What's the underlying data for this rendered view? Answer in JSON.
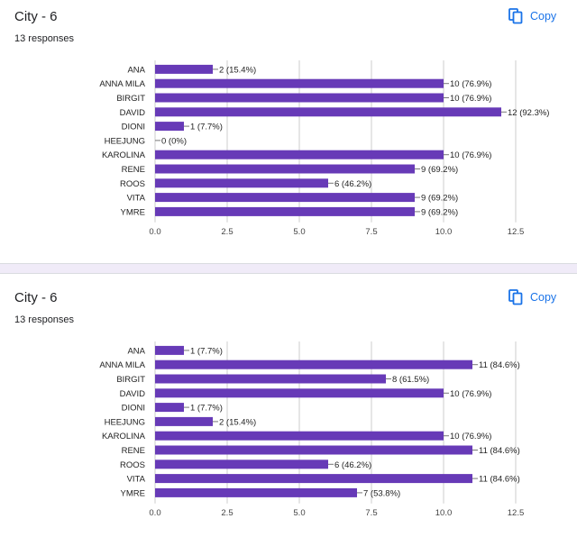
{
  "colors": {
    "bar": "#673ab7",
    "grid": "#cccccc",
    "link": "#1a73e8",
    "divider": "#f0ebf8"
  },
  "icons": {
    "copy": "copy-icon"
  },
  "copy_label": "Copy",
  "questions": [
    {
      "title": "City - 6",
      "responses": "13 responses"
    },
    {
      "title": "City - 6",
      "responses": "13 responses"
    }
  ],
  "chart_data": [
    {
      "type": "bar",
      "orientation": "horizontal",
      "categories": [
        "ANA",
        "ANNA MILA",
        "BIRGIT",
        "DAVID",
        "DIONI",
        "HEEJUNG",
        "KAROLINA",
        "RENE",
        "ROOS",
        "VITA",
        "YMRE"
      ],
      "values": [
        2,
        10,
        10,
        12,
        1,
        0,
        10,
        9,
        6,
        9,
        9
      ],
      "data_labels": [
        "2 (15.4%)",
        "10 (76.9%)",
        "10 (76.9%)",
        "12 (92.3%)",
        "1 (7.7%)",
        "0 (0%)",
        "10 (76.9%)",
        "9 (69.2%)",
        "6 (46.2%)",
        "9 (69.2%)",
        "9 (69.2%)"
      ],
      "xlim": [
        0,
        12.5
      ],
      "xticks": [
        "0.0",
        "2.5",
        "5.0",
        "7.5",
        "10.0",
        "12.5"
      ],
      "grid": true
    },
    {
      "type": "bar",
      "orientation": "horizontal",
      "categories": [
        "ANA",
        "ANNA MILA",
        "BIRGIT",
        "DAVID",
        "DIONI",
        "HEEJUNG",
        "KAROLINA",
        "RENE",
        "ROOS",
        "VITA",
        "YMRE"
      ],
      "values": [
        1,
        11,
        8,
        10,
        1,
        2,
        10,
        11,
        6,
        11,
        7
      ],
      "data_labels": [
        "1 (7.7%)",
        "11 (84.6%)",
        "8 (61.5%)",
        "10 (76.9%)",
        "1 (7.7%)",
        "2 (15.4%)",
        "10 (76.9%)",
        "11 (84.6%)",
        "6 (46.2%)",
        "11 (84.6%)",
        "7 (53.8%)"
      ],
      "xlim": [
        0,
        12.5
      ],
      "xticks": [
        "0.0",
        "2.5",
        "5.0",
        "7.5",
        "10.0",
        "12.5"
      ],
      "grid": true
    }
  ]
}
